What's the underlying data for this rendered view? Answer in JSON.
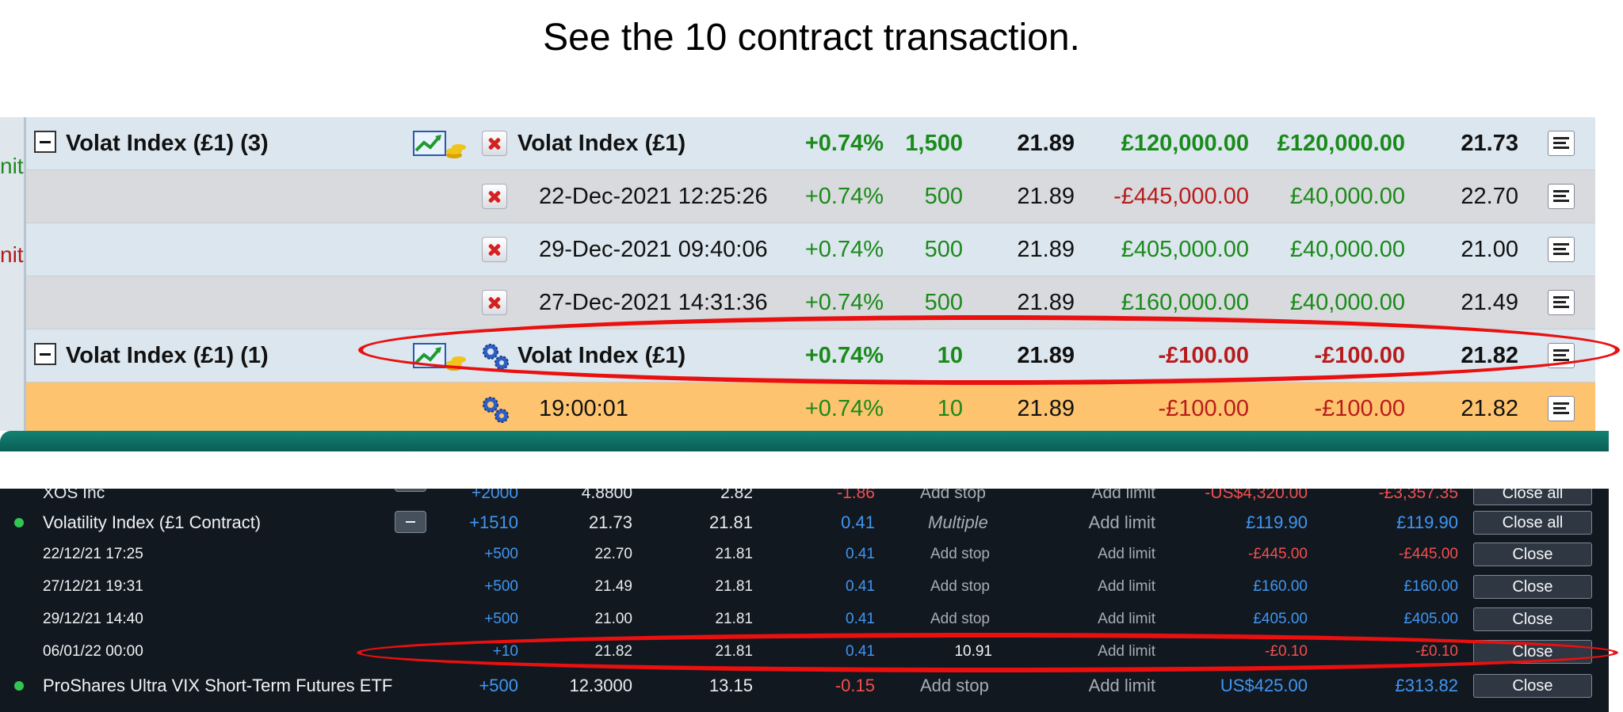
{
  "caption": "See the 10 contract transaction.",
  "top_panel": {
    "edge_labels": [
      "nit",
      "nit"
    ],
    "rows": [
      {
        "group": "Volat Index (£1) (3)",
        "name": "Volat Index (£1)",
        "change": "+0.74%",
        "qty": "1,500",
        "price": "21.89",
        "pl": "£120,000.00",
        "pl2": "£120,000.00",
        "open": "21.73"
      },
      {
        "group": "",
        "name": "22-Dec-2021 12:25:26",
        "change": "+0.74%",
        "qty": "500",
        "price": "21.89",
        "pl": "-£445,000.00",
        "pl2": "£40,000.00",
        "open": "22.70"
      },
      {
        "group": "",
        "name": "29-Dec-2021 09:40:06",
        "change": "+0.74%",
        "qty": "500",
        "price": "21.89",
        "pl": "£405,000.00",
        "pl2": "£40,000.00",
        "open": "21.00"
      },
      {
        "group": "",
        "name": "27-Dec-2021 14:31:36",
        "change": "+0.74%",
        "qty": "500",
        "price": "21.89",
        "pl": "£160,000.00",
        "pl2": "£40,000.00",
        "open": "21.49"
      },
      {
        "group": "Volat Index (£1) (1)",
        "name": "Volat Index (£1)",
        "change": "+0.74%",
        "qty": "10",
        "price": "21.89",
        "pl": "-£100.00",
        "pl2": "-£100.00",
        "open": "21.82"
      },
      {
        "group": "",
        "name": "19:00:01",
        "change": "+0.74%",
        "qty": "10",
        "price": "21.89",
        "pl": "-£100.00",
        "pl2": "-£100.00",
        "open": "21.82"
      }
    ]
  },
  "bottom_panel": {
    "partial_row": {
      "name": "XOS Inc",
      "qty": "+2000",
      "open": "4.8800",
      "current": "2.82",
      "change": "-1.86",
      "stop": "Add stop",
      "limit": "Add limit",
      "pl": "-US$4,320.00",
      "pl2": "-£3,357.35",
      "action": "Close all"
    },
    "rows": [
      {
        "name": "Volatility Index (£1 Contract)",
        "qty": "+1510",
        "open": "21.73",
        "current": "21.81",
        "change": "0.41",
        "stop": "Multiple",
        "limit": "Add limit",
        "pl": "£119.90",
        "pl2": "£119.90",
        "action": "Close all"
      },
      {
        "name": "22/12/21 17:25",
        "qty": "+500",
        "open": "22.70",
        "current": "21.81",
        "change": "0.41",
        "stop": "Add stop",
        "limit": "Add limit",
        "pl": "-£445.00",
        "pl2": "-£445.00",
        "action": "Close"
      },
      {
        "name": "27/12/21 19:31",
        "qty": "+500",
        "open": "21.49",
        "current": "21.81",
        "change": "0.41",
        "stop": "Add stop",
        "limit": "Add limit",
        "pl": "£160.00",
        "pl2": "£160.00",
        "action": "Close"
      },
      {
        "name": "29/12/21 14:40",
        "qty": "+500",
        "open": "21.00",
        "current": "21.81",
        "change": "0.41",
        "stop": "Add stop",
        "limit": "Add limit",
        "pl": "£405.00",
        "pl2": "£405.00",
        "action": "Close"
      },
      {
        "name": "06/01/22 00:00",
        "qty": "+10",
        "open": "21.82",
        "current": "21.81",
        "change": "0.41",
        "stop": "10.91",
        "limit": "Add limit",
        "pl": "-£0.10",
        "pl2": "-£0.10",
        "action": "Close"
      },
      {
        "name": "ProShares Ultra VIX Short-Term Futures ETF",
        "qty": "+500",
        "open": "12.3000",
        "current": "13.15",
        "change": "-0.15",
        "stop": "Add stop",
        "limit": "Add limit",
        "pl": "US$425.00",
        "pl2": "£313.82",
        "action": "Close"
      }
    ]
  },
  "colors": {
    "highlight": "#ea1010",
    "green": "#1a8a1a",
    "red": "#b71c1c",
    "blue": "#3f97f2",
    "orange_row": "#fdc36e",
    "dark_bg": "#121820"
  }
}
